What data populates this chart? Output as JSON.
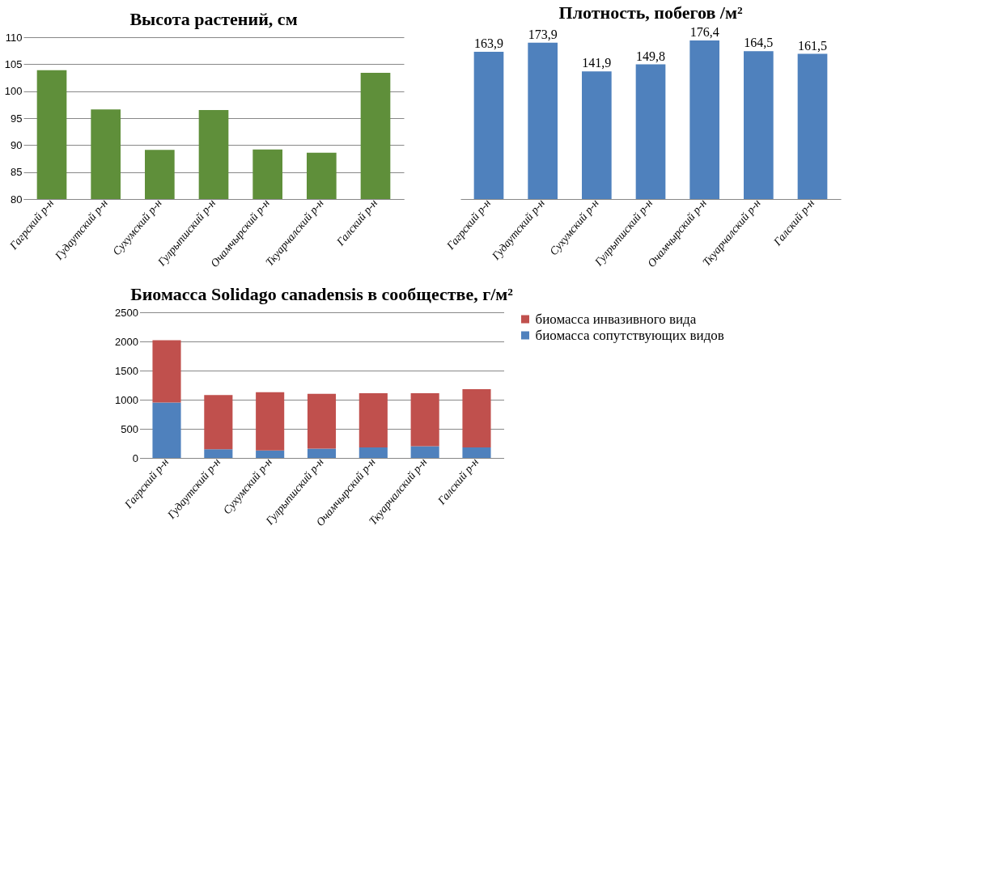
{
  "chart_data": [
    {
      "type": "bar",
      "title": "Высота растений, см",
      "categories": [
        "Гагрский р-н",
        "Гудаутский р-н",
        "Сухумский р-н",
        "Гулрыпшский р-н",
        "Очамчырский р-н",
        "Ткуарчалский р-н",
        "Галский р-н"
      ],
      "values": [
        103.9,
        96.6,
        89.1,
        96.5,
        89.2,
        88.6,
        103.4
      ],
      "color": "#5f8f3a",
      "ylim": [
        80,
        110
      ],
      "yticks": [
        80,
        85,
        90,
        95,
        100,
        105,
        110
      ],
      "grid": "y"
    },
    {
      "type": "bar",
      "title": "Плотность, побегов /м²",
      "categories": [
        "Гагрский р-н",
        "Гудаутский р-н",
        "Сухумский р-н",
        "Гулрыпшский р-н",
        "Очамчырский р-н",
        "Ткуарчалский р-н",
        "Галский р-н"
      ],
      "values": [
        163.9,
        173.9,
        141.9,
        149.8,
        176.4,
        164.5,
        161.5
      ],
      "value_labels": [
        "163,9",
        "173,9",
        "141,9",
        "149,8",
        "176,4",
        "164,5",
        "161,5"
      ],
      "color": "#4f81bd",
      "tick_labels": "x"
    },
    {
      "type": "bar",
      "title": "Биомасса Solidago canadensis в сообществе, г/м²",
      "categories": [
        "Гагрский р-н",
        "Гудаутский р-н",
        "Сухумский р-н",
        "Гулрыпшский р-н",
        "Очамчырский р-н",
        "Ткуарчалский р-н",
        "Галский р-н"
      ],
      "stacked": true,
      "ylim": [
        0,
        2500
      ],
      "yticks": [
        0,
        500,
        1000,
        1500,
        2000,
        2500
      ],
      "grid": "y",
      "legend": "right",
      "series": [
        {
          "name": "биомасса сопутствующих видов",
          "color": "#4f81bd",
          "values": [
            950,
            150,
            130,
            160,
            180,
            200,
            180
          ]
        },
        {
          "name": "биомасса инвазивного вида",
          "color": "#c0504d",
          "values": [
            1070,
            930,
            1000,
            940,
            930,
            910,
            1000
          ]
        }
      ]
    }
  ]
}
